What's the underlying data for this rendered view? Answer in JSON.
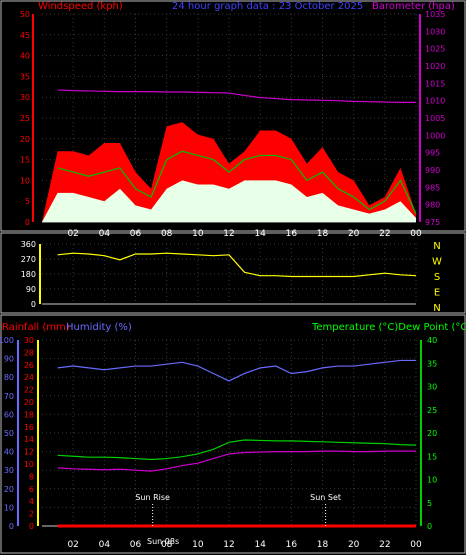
{
  "colors": {
    "wind_gust": "#ff0000",
    "wind_avg": "#00c000",
    "wind_min": "#e8ffe8",
    "barometer": "#d000d0",
    "wind_dir": "#ffff00",
    "humidity": "#6a6aff",
    "temperature": "#00d000",
    "dewpoint": "#d000d0",
    "rainfall": "#ff0000",
    "sun_marker": "#ffff00",
    "axis": "#00ff00",
    "frame": "#bdbdbd"
  },
  "chart_data": [
    {
      "type": "area",
      "title": "24 hour graph data : 23 October 2025",
      "ylabel_left": "Windspeed (kph)",
      "ylabel_right": "Barometer (hpa)",
      "x": [
        "01",
        "02",
        "03",
        "04",
        "05",
        "06",
        "07",
        "08",
        "09",
        "10",
        "11",
        "12",
        "13",
        "14",
        "15",
        "16",
        "17",
        "18",
        "19",
        "20",
        "21",
        "22",
        "23",
        "00"
      ],
      "x_tick_labels": [
        "02",
        "04",
        "06",
        "08",
        "10",
        "12",
        "14",
        "16",
        "18",
        "20",
        "22",
        "00"
      ],
      "ylim_left": [
        0,
        50
      ],
      "yticks_left": [
        0,
        5,
        10,
        15,
        20,
        25,
        30,
        35,
        40,
        45,
        50
      ],
      "ylim_right": [
        975,
        1035
      ],
      "yticks_right": [
        975,
        980,
        985,
        990,
        995,
        1000,
        1005,
        1010,
        1015,
        1020,
        1025,
        1030,
        1035
      ],
      "series": [
        {
          "name": "Gust",
          "axis": "left",
          "values": [
            17,
            17,
            16,
            19,
            19,
            12,
            8,
            23,
            24,
            21,
            20,
            14,
            17,
            22,
            22,
            20,
            14,
            18,
            12,
            10,
            4,
            6,
            13,
            2
          ]
        },
        {
          "name": "Average",
          "axis": "left",
          "values": [
            13,
            12,
            11,
            12,
            13,
            8,
            6,
            15,
            17,
            16,
            15,
            12,
            15,
            16,
            16,
            15,
            10,
            12,
            8,
            6,
            3,
            5,
            10,
            2
          ]
        },
        {
          "name": "Minimum",
          "axis": "left",
          "values": [
            7,
            7,
            6,
            5,
            8,
            4,
            3,
            8,
            10,
            9,
            9,
            8,
            10,
            10,
            10,
            9,
            6,
            7,
            4,
            3,
            2,
            3,
            5,
            1
          ]
        },
        {
          "name": "Barometer",
          "axis": "right",
          "values": [
            1013.1,
            1012.9,
            1012.8,
            1012.7,
            1012.6,
            1012.6,
            1012.6,
            1012.5,
            1012.5,
            1012.4,
            1012.3,
            1012.2,
            1011.5,
            1010.9,
            1010.6,
            1010.3,
            1010.2,
            1010.1,
            1010.0,
            1009.8,
            1009.7,
            1009.6,
            1009.5,
            1009.5
          ]
        }
      ]
    },
    {
      "type": "line",
      "ylabel_right": [
        "N",
        "W",
        "S",
        "E",
        "N"
      ],
      "x": [
        "01",
        "02",
        "03",
        "04",
        "05",
        "06",
        "07",
        "08",
        "09",
        "10",
        "11",
        "12",
        "13",
        "14",
        "15",
        "16",
        "17",
        "18",
        "19",
        "20",
        "21",
        "22",
        "23",
        "00"
      ],
      "ylim": [
        0,
        360
      ],
      "yticks": [
        0,
        90,
        180,
        270,
        360
      ],
      "series": [
        {
          "name": "Wind direction",
          "values": [
            295,
            305,
            300,
            290,
            265,
            300,
            300,
            305,
            300,
            295,
            290,
            295,
            190,
            170,
            170,
            165,
            165,
            165,
            165,
            165,
            175,
            185,
            175,
            170
          ]
        }
      ]
    },
    {
      "type": "line",
      "ylabel_left_rain": "Rainfall (mm)",
      "ylabel_left_humidity": "Humidity (%)",
      "ylabel_right": "Temperature (°C)Dew Point (°C)",
      "x": [
        "01",
        "02",
        "03",
        "04",
        "05",
        "06",
        "07",
        "08",
        "09",
        "10",
        "11",
        "12",
        "13",
        "14",
        "15",
        "16",
        "17",
        "18",
        "19",
        "20",
        "21",
        "22",
        "23",
        "00"
      ],
      "ylim_humidity": [
        0,
        100
      ],
      "yticks_humidity": [
        0,
        10,
        20,
        30,
        40,
        50,
        60,
        70,
        80,
        90,
        100
      ],
      "ylim_rain": [
        0,
        30
      ],
      "yticks_rain": [
        0,
        2,
        4,
        6,
        8,
        10,
        12,
        14,
        16,
        18,
        20,
        22,
        24,
        26,
        28,
        30
      ],
      "ylim_temp": [
        0,
        40
      ],
      "yticks_temp": [
        0,
        5,
        10,
        15,
        20,
        25,
        30,
        35,
        40
      ],
      "annotations": [
        {
          "text": "Sun Rise",
          "x": 7.1
        },
        {
          "text": "Sun Set",
          "x": 18.2
        }
      ],
      "x_label_overlay": "Sun 08s",
      "series": [
        {
          "name": "Humidity",
          "axis": "humidity",
          "values": [
            85,
            86,
            85,
            84,
            85,
            86,
            86,
            87,
            88,
            86,
            82,
            78,
            82,
            85,
            86,
            82,
            83,
            85,
            86,
            86,
            87,
            88,
            89,
            89
          ]
        },
        {
          "name": "Temperature",
          "axis": "temp",
          "values": [
            15.2,
            15.0,
            14.8,
            14.8,
            14.7,
            14.5,
            14.3,
            14.5,
            14.9,
            15.5,
            16.5,
            18.0,
            18.5,
            18.4,
            18.3,
            18.3,
            18.2,
            18.1,
            18.0,
            17.9,
            17.8,
            17.7,
            17.5,
            17.4
          ]
        },
        {
          "name": "Dew Point",
          "axis": "temp",
          "values": [
            12.5,
            12.3,
            12.2,
            12.1,
            12.2,
            12.0,
            11.8,
            12.3,
            13.0,
            13.5,
            14.5,
            15.5,
            15.8,
            15.9,
            16.0,
            16.0,
            16.0,
            16.1,
            16.1,
            16.0,
            16.0,
            16.1,
            16.1,
            16.1
          ]
        },
        {
          "name": "Rainfall",
          "axis": "rain",
          "values": [
            0,
            0,
            0,
            0,
            0,
            0,
            0,
            0,
            0,
            0,
            0,
            0,
            0,
            0,
            0,
            0,
            0,
            0,
            0,
            0,
            0,
            0,
            0,
            0
          ]
        }
      ]
    }
  ]
}
